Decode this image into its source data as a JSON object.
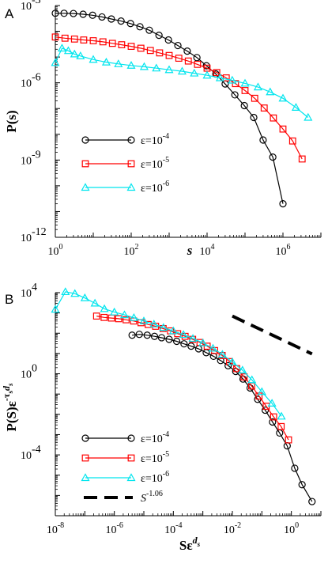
{
  "figure": {
    "panels": [
      {
        "id": "A",
        "letter": "A"
      },
      {
        "id": "B",
        "letter": "B"
      }
    ]
  },
  "colors": {
    "black": "#000000",
    "red": "#ff0000",
    "cyan": "#00e5ee"
  },
  "chart_data": [
    {
      "panel": "A",
      "type": "line",
      "xscale": "log",
      "yscale": "log",
      "xlim": [
        1,
        10000000
      ],
      "ylim": [
        1e-12,
        0.001
      ],
      "xlabel": "s",
      "ylabel": "P(s)",
      "x_ticks": [
        {
          "value": 1,
          "base": "10",
          "exp": "0"
        },
        {
          "value": 100,
          "base": "10",
          "exp": "2"
        },
        {
          "value": 10000,
          "base": "10",
          "exp": "4"
        },
        {
          "value": 1000000,
          "base": "10",
          "exp": "6"
        }
      ],
      "y_ticks": [
        {
          "value": 1e-12,
          "base": "10",
          "exp": "-12"
        },
        {
          "value": 1e-09,
          "base": "10",
          "exp": "-9"
        },
        {
          "value": 1e-06,
          "base": "10",
          "exp": "-6"
        },
        {
          "value": 0.001,
          "base": "10",
          "exp": "-3"
        }
      ],
      "legend_position": "center-left",
      "series": [
        {
          "name": "ε=10",
          "name_exp": "-4",
          "color": "#000000",
          "marker": "circle",
          "points": [
            [
              1,
              0.0005
            ],
            [
              1.7,
              0.0005
            ],
            [
              3,
              0.00049
            ],
            [
              5.4,
              0.00046
            ],
            [
              9.6,
              0.00042
            ],
            [
              17,
              0.00036
            ],
            [
              30,
              0.0003
            ],
            [
              54,
              0.00025
            ],
            [
              96,
              0.0002
            ],
            [
              170,
              0.00015
            ],
            [
              300,
              0.00011
            ],
            [
              540,
              7e-05
            ],
            [
              960,
              4.6e-05
            ],
            [
              1700,
              2.8e-05
            ],
            [
              3000,
              1.7e-05
            ],
            [
              5400,
              9.5e-06
            ],
            [
              9600,
              4.6e-06
            ],
            [
              17000,
              2.2e-06
            ],
            [
              30000,
              9e-07
            ],
            [
              54000,
              3.4e-07
            ],
            [
              96000,
              1.3e-07
            ],
            [
              170000,
              4.5e-08
            ],
            [
              300000,
              6e-09
            ],
            [
              540000,
              1.3e-09
            ],
            [
              1000000,
              2e-11
            ]
          ]
        },
        {
          "name": "ε=10",
          "name_exp": "-5",
          "color": "#ff0000",
          "marker": "square",
          "points": [
            [
              1,
              6e-05
            ],
            [
              1.8,
              5.4e-05
            ],
            [
              3.2,
              5e-05
            ],
            [
              5.6,
              4.6e-05
            ],
            [
              10,
              4.3e-05
            ],
            [
              18,
              3.9e-05
            ],
            [
              32,
              3.4e-05
            ],
            [
              56,
              3e-05
            ],
            [
              100,
              2.6e-05
            ],
            [
              180,
              2.2e-05
            ],
            [
              320,
              1.8e-05
            ],
            [
              560,
              1.45e-05
            ],
            [
              1000,
              1.15e-05
            ],
            [
              1800,
              9e-06
            ],
            [
              3200,
              7e-06
            ],
            [
              5600,
              5.2e-06
            ],
            [
              10000,
              3.7e-06
            ],
            [
              18000,
              2.5e-06
            ],
            [
              32000,
              1.55e-06
            ],
            [
              56000,
              9.3e-07
            ],
            [
              100000,
              5e-07
            ],
            [
              180000,
              2.5e-07
            ],
            [
              320000,
              1.05e-07
            ],
            [
              560000,
              4.3e-08
            ],
            [
              1000000,
              1.6e-08
            ],
            [
              1800000,
              5.5e-09
            ],
            [
              3200000,
              1.1e-09
            ]
          ]
        },
        {
          "name": "ε=10",
          "name_exp": "-6",
          "color": "#00e5ee",
          "marker": "triangle",
          "points": [
            [
              1,
              6e-06
            ],
            [
              1.5,
              2.2e-05
            ],
            [
              2.2,
              1.75e-05
            ],
            [
              3.2,
              1.3e-05
            ],
            [
              4.6,
              1.1e-05
            ],
            [
              10,
              8e-06
            ],
            [
              22,
              6.3e-06
            ],
            [
              46,
              5.4e-06
            ],
            [
              100,
              4.7e-06
            ],
            [
              220,
              4.2e-06
            ],
            [
              460,
              3.7e-06
            ],
            [
              1000,
              3.2e-06
            ],
            [
              2200,
              2.8e-06
            ],
            [
              4600,
              2.35e-06
            ],
            [
              10000,
              1.95e-06
            ],
            [
              22000,
              1.55e-06
            ],
            [
              46000,
              1.25e-06
            ],
            [
              100000,
              9.5e-07
            ],
            [
              220000,
              6.8e-07
            ],
            [
              460000,
              4.4e-07
            ],
            [
              1000000,
              2.5e-07
            ],
            [
              2200000,
              1.1e-07
            ],
            [
              4600000,
              4.5e-08
            ]
          ]
        }
      ]
    },
    {
      "panel": "B",
      "type": "line",
      "xscale": "log",
      "yscale": "log",
      "xlim": [
        1e-08,
        10
      ],
      "ylim": [
        1e-07,
        10000
      ],
      "xlabel": "Sε",
      "xlabel_exp": "d",
      "xlabel_exp_sub": "s",
      "ylabel": "P(S)ε",
      "ylabel_exp": "-τ",
      "ylabel_exp_sub": "s",
      "ylabel_exp2": "d",
      "ylabel_exp2_sub": "s",
      "x_ticks": [
        {
          "value": 1e-08,
          "base": "10",
          "exp": "-8"
        },
        {
          "value": 1e-06,
          "base": "10",
          "exp": "-6"
        },
        {
          "value": 0.0001,
          "base": "10",
          "exp": "-4"
        },
        {
          "value": 0.01,
          "base": "10",
          "exp": "-2"
        },
        {
          "value": 1,
          "base": "10",
          "exp": "0"
        }
      ],
      "y_ticks": [
        {
          "value": 0.0001,
          "base": "10",
          "exp": "-4"
        },
        {
          "value": 1,
          "base": "10",
          "exp": "0"
        },
        {
          "value": 10000,
          "base": "10",
          "exp": "4"
        }
      ],
      "legend_position": "bottom-left",
      "series": [
        {
          "name": "ε=10",
          "name_exp": "-4",
          "color": "#000000",
          "marker": "circle",
          "points": [
            [
              4e-06,
              80
            ],
            [
              7e-06,
              88
            ],
            [
              1.3e-05,
              80
            ],
            [
              2.3e-05,
              70
            ],
            [
              4e-05,
              60
            ],
            [
              7.2e-05,
              50
            ],
            [
              0.00013,
              40
            ],
            [
              0.00023,
              30
            ],
            [
              0.0004,
              23
            ],
            [
              0.00072,
              17
            ],
            [
              0.0013,
              11
            ],
            [
              0.0023,
              7.3
            ],
            [
              0.004,
              4.5
            ],
            [
              0.0072,
              2.5
            ],
            [
              0.013,
              1.3
            ],
            [
              0.023,
              0.55
            ],
            [
              0.04,
              0.2
            ],
            [
              0.072,
              0.055
            ],
            [
              0.13,
              0.016
            ],
            [
              0.23,
              0.0042
            ],
            [
              0.4,
              0.0012
            ],
            [
              0.72,
              0.00028
            ],
            [
              1.3,
              2.2e-05
            ],
            [
              2.3,
              3.4e-06
            ],
            [
              5.0,
              5e-07
            ]
          ]
        },
        {
          "name": "ε=10",
          "name_exp": "-5",
          "color": "#ff0000",
          "marker": "square",
          "points": [
            [
              2.5e-07,
              700
            ],
            [
              4.5e-07,
              600
            ],
            [
              8e-07,
              560
            ],
            [
              1.4e-06,
              520
            ],
            [
              2.5e-06,
              460
            ],
            [
              4.5e-06,
              400
            ],
            [
              8e-06,
              330
            ],
            [
              1.4e-05,
              270
            ],
            [
              2.5e-05,
              220
            ],
            [
              4.5e-05,
              170
            ],
            [
              8e-05,
              130
            ],
            [
              0.00014,
              95
            ],
            [
              0.00025,
              70
            ],
            [
              0.00045,
              50
            ],
            [
              0.0008,
              35
            ],
            [
              0.0014,
              23
            ],
            [
              0.0025,
              14
            ],
            [
              0.0045,
              8
            ],
            [
              0.008,
              4
            ],
            [
              0.014,
              1.8
            ],
            [
              0.025,
              0.7
            ],
            [
              0.045,
              0.25
            ],
            [
              0.08,
              0.08
            ],
            [
              0.14,
              0.025
            ],
            [
              0.25,
              0.0075
            ],
            [
              0.45,
              0.0025
            ],
            [
              0.8,
              0.00055
            ]
          ]
        },
        {
          "name": "ε=10",
          "name_exp": "-6",
          "color": "#00e5ee",
          "marker": "triangle",
          "points": [
            [
              1e-08,
              1500
            ],
            [
              2.2e-08,
              11000
            ],
            [
              4.6e-08,
              9000
            ],
            [
              1e-07,
              5500
            ],
            [
              2.2e-07,
              3000
            ],
            [
              4.6e-07,
              1600
            ],
            [
              1e-06,
              1100
            ],
            [
              2.2e-06,
              800
            ],
            [
              4.6e-06,
              580
            ],
            [
              1e-05,
              400
            ],
            [
              2.2e-05,
              280
            ],
            [
              4.6e-05,
              190
            ],
            [
              0.0001,
              130
            ],
            [
              0.00022,
              85
            ],
            [
              0.00046,
              55
            ],
            [
              0.001,
              33
            ],
            [
              0.0022,
              18
            ],
            [
              0.0046,
              9
            ],
            [
              0.01,
              3.8
            ],
            [
              0.022,
              1.5
            ],
            [
              0.046,
              0.5
            ],
            [
              0.1,
              0.13
            ],
            [
              0.22,
              0.035
            ],
            [
              0.46,
              0.008
            ]
          ]
        }
      ],
      "reference_line": {
        "name": "S",
        "name_exp": "-1.06",
        "color": "#000000",
        "style": "dashed",
        "points": [
          [
            0.01,
            700
          ],
          [
            5.0,
            9.5
          ]
        ]
      }
    }
  ]
}
